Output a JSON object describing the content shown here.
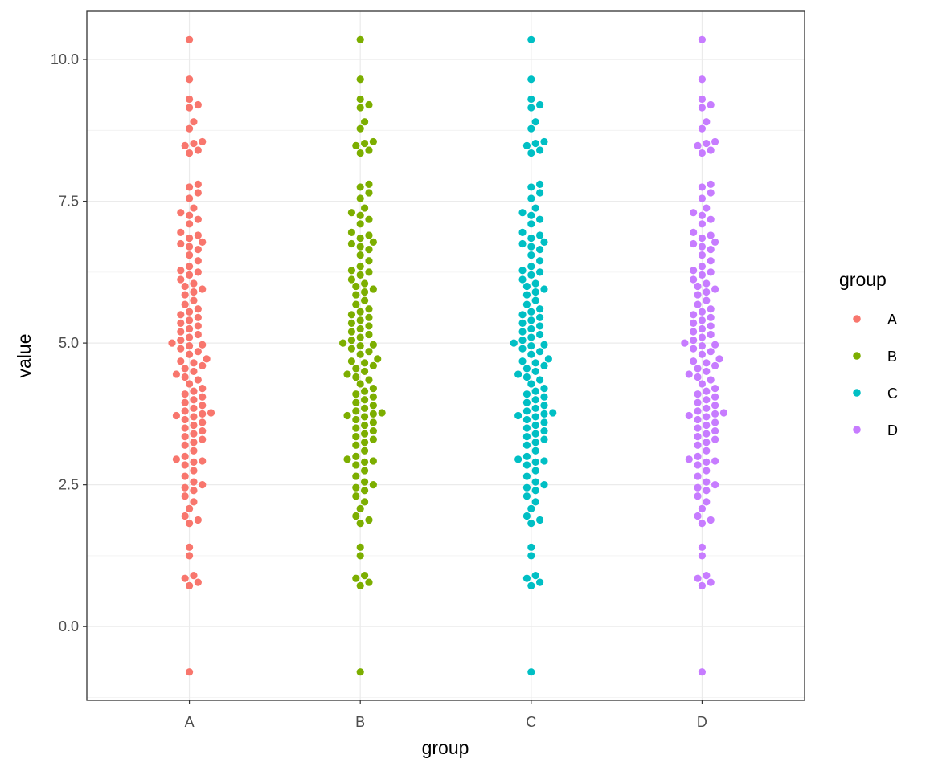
{
  "chart_data": {
    "type": "scatter",
    "subtype": "beeswarm",
    "title": "",
    "xlabel": "group",
    "ylabel": "value",
    "categories": [
      "A",
      "B",
      "C",
      "D"
    ],
    "ylim": [
      -1.3,
      10.85
    ],
    "y_ticks": [
      "0.0",
      "2.5",
      "5.0",
      "7.5",
      "10.0"
    ],
    "grid": true,
    "legend": {
      "title": "group",
      "position": "right",
      "entries": [
        "A",
        "B",
        "C",
        "D"
      ]
    },
    "colors": {
      "A": "#F8766D",
      "B": "#7CAE00",
      "C": "#00BFC4",
      "D": "#C77CFF"
    },
    "series": [
      {
        "name": "A",
        "values": [
          10.35,
          9.65,
          9.3,
          9.2,
          9.15,
          8.9,
          8.78,
          8.55,
          8.52,
          8.48,
          8.4,
          8.35,
          7.8,
          7.75,
          7.65,
          7.55,
          7.38,
          7.3,
          7.25,
          7.18,
          7.1,
          6.95,
          6.9,
          6.85,
          6.78,
          6.75,
          6.7,
          6.65,
          6.55,
          6.45,
          6.35,
          6.28,
          6.25,
          6.2,
          6.12,
          6.05,
          6.0,
          5.95,
          5.9,
          5.85,
          5.75,
          5.68,
          5.6,
          5.55,
          5.5,
          5.45,
          5.4,
          5.35,
          5.3,
          5.25,
          5.2,
          5.15,
          5.1,
          5.05,
          5.0,
          4.97,
          4.95,
          4.9,
          4.85,
          4.8,
          4.72,
          4.68,
          4.65,
          4.6,
          4.55,
          4.5,
          4.45,
          4.4,
          4.35,
          4.28,
          4.2,
          4.15,
          4.1,
          4.05,
          4.0,
          3.95,
          3.9,
          3.85,
          3.8,
          3.77,
          3.75,
          3.72,
          3.7,
          3.65,
          3.6,
          3.55,
          3.5,
          3.45,
          3.4,
          3.35,
          3.3,
          3.25,
          3.2,
          3.1,
          3.0,
          2.95,
          2.92,
          2.9,
          2.85,
          2.75,
          2.65,
          2.55,
          2.5,
          2.45,
          2.4,
          2.3,
          2.2,
          2.08,
          1.95,
          1.88,
          1.82,
          1.4,
          1.25,
          0.9,
          0.85,
          0.78,
          0.72,
          -0.8
        ]
      },
      {
        "name": "B",
        "values": [
          10.35,
          9.65,
          9.3,
          9.2,
          9.15,
          8.9,
          8.78,
          8.55,
          8.52,
          8.48,
          8.4,
          8.35,
          7.8,
          7.75,
          7.65,
          7.55,
          7.38,
          7.3,
          7.25,
          7.18,
          7.1,
          6.95,
          6.9,
          6.85,
          6.78,
          6.75,
          6.7,
          6.65,
          6.55,
          6.45,
          6.35,
          6.28,
          6.25,
          6.2,
          6.12,
          6.05,
          6.0,
          5.95,
          5.9,
          5.85,
          5.75,
          5.68,
          5.6,
          5.55,
          5.5,
          5.45,
          5.4,
          5.35,
          5.3,
          5.25,
          5.2,
          5.15,
          5.1,
          5.05,
          5.0,
          4.97,
          4.95,
          4.9,
          4.85,
          4.8,
          4.72,
          4.68,
          4.65,
          4.6,
          4.55,
          4.5,
          4.45,
          4.4,
          4.35,
          4.28,
          4.2,
          4.15,
          4.1,
          4.05,
          4.0,
          3.95,
          3.9,
          3.85,
          3.8,
          3.77,
          3.75,
          3.72,
          3.7,
          3.65,
          3.6,
          3.55,
          3.5,
          3.45,
          3.4,
          3.35,
          3.3,
          3.25,
          3.2,
          3.1,
          3.0,
          2.95,
          2.92,
          2.9,
          2.85,
          2.75,
          2.65,
          2.55,
          2.5,
          2.45,
          2.4,
          2.3,
          2.2,
          2.08,
          1.95,
          1.88,
          1.82,
          1.4,
          1.25,
          0.9,
          0.85,
          0.78,
          0.72,
          -0.8
        ]
      },
      {
        "name": "C",
        "values": [
          10.35,
          9.65,
          9.3,
          9.2,
          9.15,
          8.9,
          8.78,
          8.55,
          8.52,
          8.48,
          8.4,
          8.35,
          7.8,
          7.75,
          7.65,
          7.55,
          7.38,
          7.3,
          7.25,
          7.18,
          7.1,
          6.95,
          6.9,
          6.85,
          6.78,
          6.75,
          6.7,
          6.65,
          6.55,
          6.45,
          6.35,
          6.28,
          6.25,
          6.2,
          6.12,
          6.05,
          6.0,
          5.95,
          5.9,
          5.85,
          5.75,
          5.68,
          5.6,
          5.55,
          5.5,
          5.45,
          5.4,
          5.35,
          5.3,
          5.25,
          5.2,
          5.15,
          5.1,
          5.05,
          5.0,
          4.97,
          4.95,
          4.9,
          4.85,
          4.8,
          4.72,
          4.68,
          4.65,
          4.6,
          4.55,
          4.5,
          4.45,
          4.4,
          4.35,
          4.28,
          4.2,
          4.15,
          4.1,
          4.05,
          4.0,
          3.95,
          3.9,
          3.85,
          3.8,
          3.77,
          3.75,
          3.72,
          3.7,
          3.65,
          3.6,
          3.55,
          3.5,
          3.45,
          3.4,
          3.35,
          3.3,
          3.25,
          3.2,
          3.1,
          3.0,
          2.95,
          2.92,
          2.9,
          2.85,
          2.75,
          2.65,
          2.55,
          2.5,
          2.45,
          2.4,
          2.3,
          2.2,
          2.08,
          1.95,
          1.88,
          1.82,
          1.4,
          1.25,
          0.9,
          0.85,
          0.78,
          0.72,
          -0.8
        ]
      },
      {
        "name": "D",
        "values": [
          10.35,
          9.65,
          9.3,
          9.2,
          9.15,
          8.9,
          8.78,
          8.55,
          8.52,
          8.48,
          8.4,
          8.35,
          7.8,
          7.75,
          7.65,
          7.55,
          7.38,
          7.3,
          7.25,
          7.18,
          7.1,
          6.95,
          6.9,
          6.85,
          6.78,
          6.75,
          6.7,
          6.65,
          6.55,
          6.45,
          6.35,
          6.28,
          6.25,
          6.2,
          6.12,
          6.05,
          6.0,
          5.95,
          5.9,
          5.85,
          5.75,
          5.68,
          5.6,
          5.55,
          5.5,
          5.45,
          5.4,
          5.35,
          5.3,
          5.25,
          5.2,
          5.15,
          5.1,
          5.05,
          5.0,
          4.97,
          4.95,
          4.9,
          4.85,
          4.8,
          4.72,
          4.68,
          4.65,
          4.6,
          4.55,
          4.5,
          4.45,
          4.4,
          4.35,
          4.28,
          4.2,
          4.15,
          4.1,
          4.05,
          4.0,
          3.95,
          3.9,
          3.85,
          3.8,
          3.77,
          3.75,
          3.72,
          3.7,
          3.65,
          3.6,
          3.55,
          3.5,
          3.45,
          3.4,
          3.35,
          3.3,
          3.25,
          3.2,
          3.1,
          3.0,
          2.95,
          2.92,
          2.9,
          2.85,
          2.75,
          2.65,
          2.55,
          2.5,
          2.45,
          2.4,
          2.3,
          2.2,
          2.08,
          1.95,
          1.88,
          1.82,
          1.4,
          1.25,
          0.9,
          0.85,
          0.78,
          0.72,
          -0.8
        ]
      }
    ]
  }
}
